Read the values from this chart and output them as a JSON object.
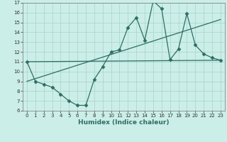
{
  "title": "",
  "xlabel": "Humidex (Indice chaleur)",
  "bg_color": "#cceee8",
  "line_color": "#2d6e65",
  "grid_color": "#aad8d0",
  "xlim": [
    -0.5,
    23.5
  ],
  "ylim": [
    6,
    17
  ],
  "xticks": [
    0,
    1,
    2,
    3,
    4,
    5,
    6,
    7,
    8,
    9,
    10,
    11,
    12,
    13,
    14,
    15,
    16,
    17,
    18,
    19,
    20,
    21,
    22,
    23
  ],
  "yticks": [
    6,
    7,
    8,
    9,
    10,
    11,
    12,
    13,
    14,
    15,
    16,
    17
  ],
  "line1_x": [
    0,
    1,
    2,
    3,
    4,
    5,
    6,
    7,
    8,
    9,
    10,
    11,
    12,
    13,
    14,
    15,
    16,
    17,
    18,
    19,
    20,
    21,
    22,
    23
  ],
  "line1_y": [
    11.0,
    9.0,
    8.7,
    8.4,
    7.7,
    7.0,
    6.55,
    6.55,
    9.2,
    10.5,
    12.0,
    12.2,
    14.5,
    15.5,
    13.2,
    17.2,
    16.4,
    11.2,
    12.3,
    15.9,
    12.7,
    11.8,
    11.4,
    11.15
  ],
  "line2_x": [
    0,
    23
  ],
  "line2_y": [
    9.0,
    15.3
  ],
  "line3_x": [
    0,
    23
  ],
  "line3_y": [
    11.0,
    11.15
  ],
  "tick_fontsize": 5.0,
  "xlabel_fontsize": 6.5,
  "marker_size": 2.5,
  "linewidth": 0.9
}
